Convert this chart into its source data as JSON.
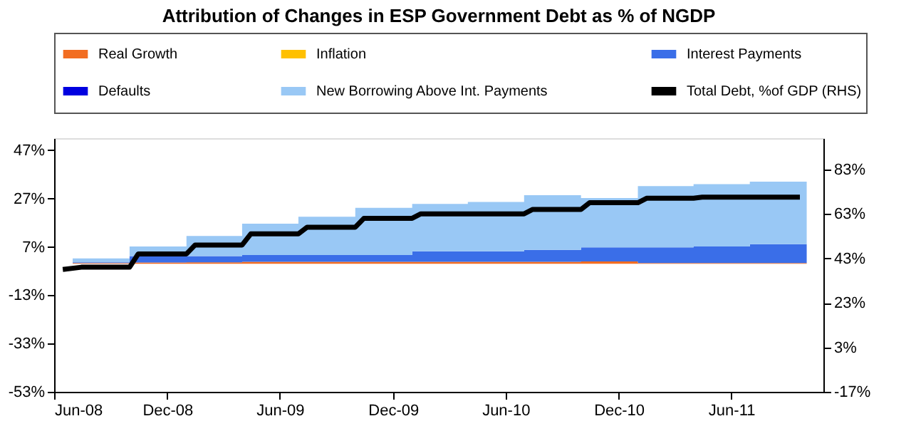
{
  "chart_data": {
    "type": "area",
    "stacked": true,
    "title": "Attribution of Changes in ESP Government Debt as % of NGDP",
    "x": [
      "2008-07-01",
      "2008-10-01",
      "2009-01-01",
      "2009-04-01",
      "2009-07-01",
      "2009-10-01",
      "2010-01-01",
      "2010-04-01",
      "2010-07-01",
      "2010-10-01",
      "2011-01-01",
      "2011-04-01",
      "2011-07-01",
      "2011-10-01"
    ],
    "series": [
      {
        "name": "Real Growth",
        "color": "#f26d21",
        "values": [
          0.3,
          0.5,
          0.6,
          0.8,
          0.8,
          0.8,
          0.8,
          0.8,
          0.8,
          1.0,
          0.3,
          0.3,
          0.3,
          0.3
        ]
      },
      {
        "name": "Inflation",
        "color": "#ffc000",
        "values": [
          null,
          null,
          null,
          null,
          null,
          null,
          null,
          null,
          null,
          null,
          null,
          null,
          null,
          null
        ]
      },
      {
        "name": "Interest Payments",
        "color": "#3a6ee8",
        "values": [
          0.3,
          2.7,
          2.6,
          2.8,
          2.8,
          2.8,
          4.4,
          4.4,
          5.0,
          5.8,
          6.5,
          6.9,
          7.8,
          7.8
        ]
      },
      {
        "name": "Defaults",
        "color": "#0000e0",
        "values": [
          null,
          null,
          null,
          null,
          null,
          null,
          null,
          null,
          null,
          null,
          null,
          null,
          null,
          null
        ]
      },
      {
        "name": "New Borrowing Above Int. Payments",
        "color": "#99c8f5",
        "values": [
          1.6,
          4.0,
          8.3,
          13.0,
          15.9,
          19.6,
          19.6,
          20.4,
          22.6,
          20.4,
          25.4,
          25.8,
          25.9,
          25.9
        ]
      },
      {
        "name": "Total Debt, %of GDP (RHS)",
        "color": "#000000",
        "type": "line",
        "axis": "y2",
        "x": [
          "2008-06-15",
          "2008-07-15",
          "2008-10-01",
          "2008-10-15",
          "2009-01-01",
          "2009-01-15",
          "2009-04-01",
          "2009-04-15",
          "2009-07-01",
          "2009-07-15",
          "2009-10-01",
          "2009-10-15",
          "2010-01-01",
          "2010-01-15",
          "2010-07-01",
          "2010-07-15",
          "2010-10-01",
          "2010-10-15",
          "2011-01-01",
          "2011-01-15",
          "2011-04-01",
          "2011-04-15",
          "2011-09-20"
        ],
        "values": [
          38,
          39,
          39,
          45,
          45,
          49,
          49,
          54,
          54,
          57,
          57,
          61,
          61,
          63,
          63,
          65,
          65,
          68,
          68,
          70,
          70,
          70.5,
          70.5
        ]
      }
    ],
    "xlim": [
      "2008-06-01",
      "2011-10-28"
    ],
    "xticks": [
      {
        "value": "2008-06-01",
        "label": "Jun-08"
      },
      {
        "value": "2008-12-01",
        "label": "Dec-08"
      },
      {
        "value": "2009-06-01",
        "label": "Jun-09"
      },
      {
        "value": "2009-12-01",
        "label": "Dec-09"
      },
      {
        "value": "2010-06-01",
        "label": "Jun-10"
      },
      {
        "value": "2010-12-01",
        "label": "Dec-10"
      },
      {
        "value": "2011-06-01",
        "label": "Jun-11"
      }
    ],
    "ylim": [
      -53,
      52
    ],
    "yticks": [
      {
        "value": -53,
        "label": "-53%"
      },
      {
        "value": -33,
        "label": "-33%"
      },
      {
        "value": -13,
        "label": "-13%"
      },
      {
        "value": 7,
        "label": "7%"
      },
      {
        "value": 27,
        "label": "27%"
      },
      {
        "value": 47,
        "label": "47%"
      }
    ],
    "y2lim": [
      -17,
      97
    ],
    "y2ticks": [
      {
        "value": -17,
        "label": "-17%"
      },
      {
        "value": 3,
        "label": "3%"
      },
      {
        "value": 23,
        "label": "23%"
      },
      {
        "value": 43,
        "label": "43%"
      },
      {
        "value": 63,
        "label": "63%"
      },
      {
        "value": 83,
        "label": "83%"
      }
    ],
    "grid": false,
    "legend": "top"
  }
}
